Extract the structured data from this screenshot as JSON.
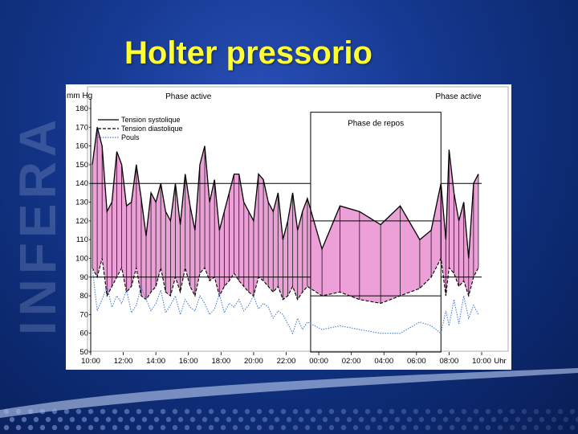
{
  "slide": {
    "title": "Holter pressorio",
    "watermark": "INFERA",
    "colors": {
      "background": "#163a93",
      "title": "#ffff33"
    }
  },
  "chart_data": {
    "type": "area",
    "title": "",
    "ylabel": "mm Hg",
    "xlabel": "Uhr",
    "ylim": [
      50,
      180
    ],
    "yticks": [
      180,
      170,
      160,
      150,
      140,
      130,
      120,
      110,
      100,
      90,
      80,
      70,
      60,
      50
    ],
    "x_tick_labels": [
      "10:00",
      "12:00",
      "14:00",
      "16:00",
      "18:00",
      "20:00",
      "22:00",
      "00:00",
      "02:00",
      "04:00",
      "06:00",
      "08:00",
      "10:00"
    ],
    "x_tick_hours": [
      0,
      2,
      4,
      6,
      8,
      10,
      12,
      14,
      16,
      18,
      20,
      22,
      24
    ],
    "phases": [
      {
        "label": "Phase active",
        "start_hour": 0,
        "end_hour": 13.5
      },
      {
        "label": "Phase de repos",
        "start_hour": 13.5,
        "end_hour": 21.5
      },
      {
        "label": "Phase active",
        "start_hour": 21.5,
        "end_hour": 24
      }
    ],
    "threshold_lines": [
      {
        "phase": "active",
        "values": [
          140,
          90
        ]
      },
      {
        "phase": "repos",
        "values": [
          120,
          80
        ]
      }
    ],
    "legend": {
      "position": "top-left",
      "entries": [
        "Tension systolique",
        "Tension diastolique",
        "Pouls"
      ]
    },
    "x": [
      0.1,
      0.4,
      0.7,
      1.0,
      1.3,
      1.6,
      1.9,
      2.2,
      2.5,
      2.8,
      3.1,
      3.4,
      3.7,
      4.0,
      4.3,
      4.6,
      4.9,
      5.2,
      5.5,
      5.8,
      6.1,
      6.4,
      6.7,
      7.0,
      7.3,
      7.6,
      7.9,
      8.2,
      8.5,
      8.8,
      9.1,
      9.4,
      9.7,
      10.0,
      10.3,
      10.6,
      10.9,
      11.2,
      11.5,
      11.8,
      12.1,
      12.4,
      12.7,
      13.0,
      13.3,
      14.2,
      15.3,
      16.5,
      17.8,
      19.0,
      20.2,
      20.9,
      21.5,
      21.8,
      22.0,
      22.3,
      22.6,
      22.9,
      23.2,
      23.5,
      23.8
    ],
    "series": [
      {
        "name": "Tension systolique",
        "color": "#000000",
        "values": [
          150,
          170,
          160,
          125,
          130,
          157,
          150,
          128,
          130,
          150,
          132,
          112,
          135,
          130,
          140,
          125,
          120,
          140,
          118,
          145,
          128,
          115,
          150,
          160,
          130,
          142,
          115,
          125,
          135,
          145,
          145,
          130,
          125,
          120,
          145,
          142,
          130,
          125,
          135,
          110,
          120,
          135,
          115,
          125,
          132,
          105,
          128,
          125,
          118,
          128,
          110,
          115,
          140,
          110,
          158,
          135,
          120,
          130,
          100,
          140,
          145
        ]
      },
      {
        "name": "Tension diastolique",
        "color": "#000000",
        "values": [
          95,
          90,
          100,
          80,
          85,
          90,
          95,
          82,
          85,
          95,
          80,
          78,
          82,
          85,
          95,
          82,
          80,
          90,
          82,
          95,
          85,
          80,
          92,
          95,
          88,
          90,
          80,
          85,
          88,
          92,
          88,
          85,
          82,
          80,
          90,
          88,
          85,
          82,
          85,
          78,
          80,
          85,
          78,
          82,
          85,
          80,
          82,
          78,
          76,
          80,
          84,
          90,
          100,
          80,
          95,
          92,
          85,
          88,
          80,
          90,
          95
        ]
      },
      {
        "name": "Pouls",
        "color": "#4a7fd6",
        "values": [
          95,
          72,
          78,
          85,
          74,
          80,
          76,
          83,
          71,
          75,
          85,
          78,
          72,
          76,
          83,
          71,
          75,
          80,
          70,
          78,
          74,
          72,
          80,
          76,
          70,
          73,
          81,
          71,
          76,
          74,
          78,
          72,
          75,
          80,
          73,
          76,
          74,
          68,
          72,
          70,
          65,
          60,
          68,
          62,
          66,
          62,
          64,
          62,
          60,
          60,
          66,
          64,
          60,
          72,
          64,
          78,
          65,
          80,
          68,
          75,
          70
        ]
      }
    ]
  }
}
